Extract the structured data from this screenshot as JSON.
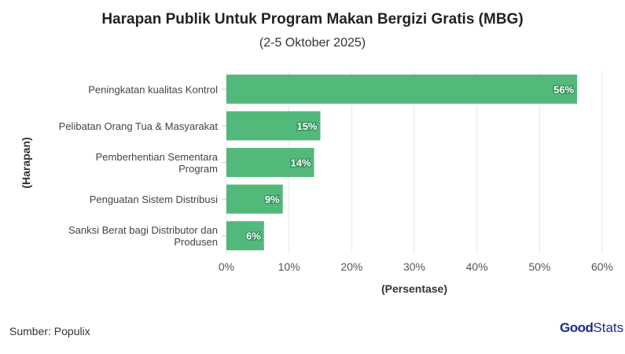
{
  "chart_data": {
    "type": "bar",
    "orientation": "horizontal",
    "title": "Harapan Publik Untuk Program Makan Bergizi Gratis (MBG)",
    "subtitle": "(2-5 Oktober 2025)",
    "categories": [
      "Peningkatan kualitas Kontrol",
      "Pelibatan Orang Tua & Masyarakat",
      "Pemberhentian Sementara Program",
      "Penguatan Sistem Distribusi",
      "Sanksi Berat bagi Distributor dan Produsen"
    ],
    "category_lines": [
      [
        "Peningkatan kualitas Kontrol"
      ],
      [
        "Pelibatan Orang Tua & Masyarakat"
      ],
      [
        "Pemberhentian Sementara",
        "Program"
      ],
      [
        "Penguatan Sistem Distribusi"
      ],
      [
        "Sanksi Berat bagi Distributor dan",
        "Produsen"
      ]
    ],
    "values": [
      56,
      15,
      14,
      9,
      6
    ],
    "data_labels": [
      "56%",
      "15%",
      "14%",
      "9%",
      "6%"
    ],
    "xlabel": "(Persentase)",
    "ylabel": "(Harapan)",
    "xlim": [
      0,
      60
    ],
    "xticks": [
      0,
      10,
      20,
      30,
      40,
      50,
      60
    ],
    "xtick_labels": [
      "0%",
      "10%",
      "20%",
      "30%",
      "40%",
      "50%",
      "60%"
    ],
    "grid": true,
    "bar_color": "#52b97b"
  },
  "footer": {
    "source": "Sumber: Populix",
    "logo_bold": "Good",
    "logo_light": "Stats"
  }
}
